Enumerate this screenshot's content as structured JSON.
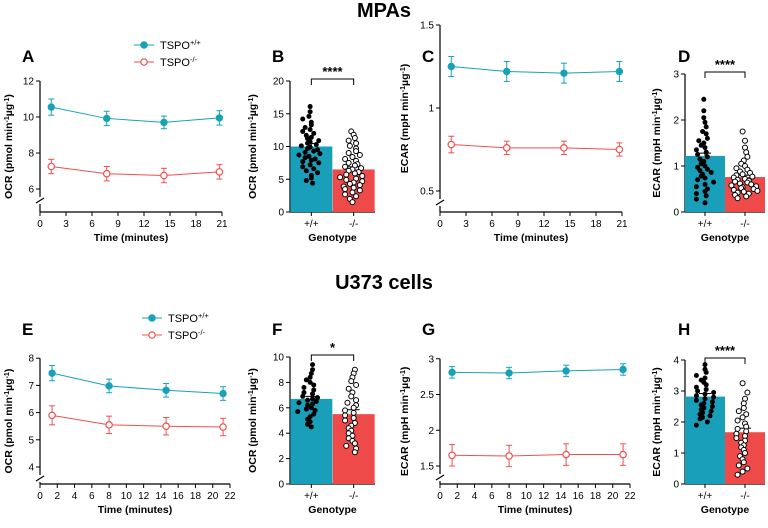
{
  "sections": [
    {
      "title": "MPAs"
    },
    {
      "title": "U373 cells"
    }
  ],
  "colors": {
    "wt": "#17a2b8",
    "ko": "#f0504e",
    "wt_bar": "#1a9fba",
    "ko_bar": "#ef4a4a"
  },
  "chart_data": [
    {
      "id": "A",
      "type": "line",
      "panel_label": "A",
      "xlabel": "Time (minutes)",
      "ylabel": "OCR (pmol min⁻¹µg⁻¹)",
      "xlim": [
        0,
        21
      ],
      "ylim": [
        5,
        12
      ],
      "axis_break": true,
      "xticks": [
        0,
        3,
        6,
        9,
        12,
        15,
        18,
        21
      ],
      "yticks": [
        6,
        8,
        10,
        12
      ],
      "legend": {
        "placement": "top-right",
        "entries": [
          "TSPO+/+",
          "TSPO-/-"
        ]
      },
      "series": [
        {
          "name": "TSPO+/+",
          "key": "wt",
          "x": [
            1.3,
            7.7,
            14.3,
            20.7
          ],
          "y": [
            10.55,
            9.92,
            9.7,
            9.95
          ],
          "err": [
            0.45,
            0.4,
            0.35,
            0.4
          ]
        },
        {
          "name": "TSPO-/-",
          "key": "ko",
          "x": [
            1.3,
            7.7,
            14.3,
            20.7
          ],
          "y": [
            7.25,
            6.85,
            6.75,
            6.95
          ],
          "err": [
            0.4,
            0.4,
            0.4,
            0.4
          ]
        }
      ]
    },
    {
      "id": "B",
      "type": "bar",
      "panel_label": "B",
      "xlabel": "Genotype",
      "ylabel": "OCR (pmol min⁻¹µg⁻¹)",
      "ylim": [
        0,
        20
      ],
      "yticks": [
        0,
        5,
        10,
        15,
        20
      ],
      "categories": [
        "+/+",
        "-/-"
      ],
      "values": [
        10.0,
        6.5
      ],
      "sem": [
        0.45,
        0.4
      ],
      "significance": "****",
      "points": [
        [
          16.1,
          15.3,
          14.6,
          14.2,
          13.7,
          13.3,
          12.9,
          12.6,
          12.3,
          12.0,
          11.7,
          11.4,
          11.2,
          10.9,
          10.7,
          10.5,
          10.3,
          10.1,
          9.9,
          9.7,
          9.5,
          9.3,
          9.1,
          8.9,
          8.7,
          8.5,
          8.3,
          8.1,
          7.9,
          7.7,
          7.5,
          7.2,
          6.9,
          6.6,
          6.3,
          6.0,
          5.6,
          5.2,
          4.8,
          4.4
        ],
        [
          12.3,
          11.8,
          11.3,
          10.9,
          10.5,
          10.1,
          9.7,
          9.3,
          9.0,
          8.7,
          8.4,
          8.1,
          7.8,
          7.5,
          7.3,
          7.1,
          6.9,
          6.7,
          6.5,
          6.3,
          6.1,
          5.9,
          5.7,
          5.5,
          5.3,
          5.1,
          4.9,
          4.7,
          4.5,
          4.3,
          4.1,
          3.9,
          3.7,
          3.5,
          3.3,
          3.0,
          2.7,
          2.4,
          2.0,
          1.5
        ]
      ]
    },
    {
      "id": "C",
      "type": "line",
      "panel_label": "C",
      "xlabel": "Time (minutes)",
      "ylabel": "ECAR (mpH min⁻¹µg⁻¹)",
      "xlim": [
        0,
        21
      ],
      "ylim": [
        0.45,
        1.5
      ],
      "axis_break": true,
      "xticks": [
        0,
        3,
        6,
        9,
        12,
        15,
        18,
        21
      ],
      "yticks": [
        0.5,
        1.0,
        1.5
      ],
      "series": [
        {
          "name": "TSPO+/+",
          "key": "wt",
          "x": [
            1.3,
            7.7,
            14.3,
            20.7
          ],
          "y": [
            1.25,
            1.22,
            1.21,
            1.22
          ],
          "err": [
            0.06,
            0.06,
            0.06,
            0.06
          ]
        },
        {
          "name": "TSPO-/-",
          "key": "ko",
          "x": [
            1.3,
            7.7,
            14.3,
            20.7
          ],
          "y": [
            0.78,
            0.76,
            0.76,
            0.75
          ],
          "err": [
            0.05,
            0.04,
            0.04,
            0.04
          ]
        }
      ]
    },
    {
      "id": "D",
      "type": "bar",
      "panel_label": "D",
      "xlabel": "Genotype",
      "ylabel": "ECAR (mpH min⁻¹µg⁻¹)",
      "ylim": [
        0,
        3
      ],
      "yticks": [
        0,
        1,
        2,
        3
      ],
      "categories": [
        "+/+",
        "-/-"
      ],
      "values": [
        1.22,
        0.76
      ],
      "sem": [
        0.06,
        0.04
      ],
      "significance": "****",
      "points": [
        [
          2.45,
          2.2,
          2.05,
          1.95,
          1.85,
          1.75,
          1.7,
          1.6,
          1.55,
          1.5,
          1.45,
          1.4,
          1.35,
          1.3,
          1.25,
          1.2,
          1.15,
          1.1,
          1.05,
          1.0,
          0.97,
          0.93,
          0.9,
          0.86,
          0.82,
          0.78,
          0.74,
          0.7,
          0.65,
          0.6,
          0.55,
          0.5,
          0.45,
          0.4,
          0.35,
          0.28,
          0.2
        ],
        [
          1.75,
          1.55,
          1.4,
          1.3,
          1.2,
          1.12,
          1.05,
          1.0,
          0.95,
          0.92,
          0.88,
          0.85,
          0.82,
          0.8,
          0.77,
          0.75,
          0.72,
          0.7,
          0.68,
          0.66,
          0.64,
          0.62,
          0.6,
          0.58,
          0.56,
          0.54,
          0.52,
          0.5,
          0.48,
          0.46,
          0.44,
          0.42,
          0.4,
          0.37,
          0.34,
          0.3
        ]
      ]
    },
    {
      "id": "E",
      "type": "line",
      "panel_label": "E",
      "xlabel": "Time (minutes)",
      "ylabel": "OCR (pmol min⁻¹µg⁻¹)",
      "xlim": [
        0,
        22
      ],
      "ylim": [
        3.5,
        8
      ],
      "axis_break": true,
      "xticks": [
        0,
        2,
        4,
        6,
        8,
        10,
        12,
        14,
        16,
        18,
        20,
        22
      ],
      "yticks": [
        4,
        5,
        6,
        7,
        8
      ],
      "legend": {
        "placement": "top-right",
        "entries": [
          "TSPO+/+",
          "TSPO-/-"
        ]
      },
      "series": [
        {
          "name": "TSPO+/+",
          "key": "wt",
          "x": [
            1.4,
            8.0,
            14.6,
            21.2
          ],
          "y": [
            7.45,
            6.98,
            6.82,
            6.7
          ],
          "err": [
            0.28,
            0.25,
            0.25,
            0.25
          ]
        },
        {
          "name": "TSPO-/-",
          "key": "ko",
          "x": [
            1.4,
            8.0,
            14.6,
            21.2
          ],
          "y": [
            5.9,
            5.55,
            5.5,
            5.47
          ],
          "err": [
            0.35,
            0.32,
            0.32,
            0.32
          ]
        }
      ]
    },
    {
      "id": "F",
      "type": "bar",
      "panel_label": "F",
      "xlabel": "Genotype",
      "ylabel": "OCR (pmol min⁻¹µg⁻¹)",
      "ylim": [
        0,
        10
      ],
      "yticks": [
        0,
        2,
        4,
        6,
        8,
        10
      ],
      "categories": [
        "+/+",
        "-/-"
      ],
      "values": [
        6.7,
        5.5
      ],
      "sem": [
        0.2,
        0.35
      ],
      "significance": "*",
      "points": [
        [
          9.4,
          9.0,
          8.7,
          8.4,
          8.2,
          8.0,
          7.8,
          7.6,
          7.4,
          7.2,
          7.1,
          6.9,
          6.8,
          6.7,
          6.6,
          6.5,
          6.4,
          6.3,
          6.2,
          6.0,
          5.9,
          5.8,
          5.7,
          5.5,
          5.3,
          5.1,
          4.9,
          4.7,
          4.5
        ],
        [
          9.0,
          8.7,
          8.4,
          8.1,
          7.8,
          7.5,
          7.2,
          6.9,
          6.6,
          6.4,
          6.2,
          6.0,
          5.8,
          5.6,
          5.4,
          5.2,
          5.0,
          4.8,
          4.6,
          4.4,
          4.2,
          4.0,
          3.8,
          3.6,
          3.4,
          3.2,
          3.0,
          2.8,
          2.5
        ]
      ]
    },
    {
      "id": "G",
      "type": "line",
      "panel_label": "G",
      "xlabel": "Time (minutes)",
      "ylabel": "ECAR (mpH min⁻¹µg⁻¹)",
      "xlim": [
        0,
        22
      ],
      "ylim": [
        1.4,
        3.0
      ],
      "axis_break": true,
      "xticks": [
        0,
        2,
        4,
        6,
        8,
        10,
        12,
        14,
        16,
        18,
        20,
        22
      ],
      "yticks": [
        1.5,
        2.0,
        2.5,
        3.0
      ],
      "series": [
        {
          "name": "TSPO+/+",
          "key": "wt",
          "x": [
            1.4,
            8.0,
            14.6,
            21.2
          ],
          "y": [
            2.81,
            2.8,
            2.83,
            2.85
          ],
          "err": [
            0.08,
            0.08,
            0.08,
            0.08
          ]
        },
        {
          "name": "TSPO-/-",
          "key": "ko",
          "x": [
            1.4,
            8.0,
            14.6,
            21.2
          ],
          "y": [
            1.65,
            1.64,
            1.66,
            1.66
          ],
          "err": [
            0.15,
            0.15,
            0.15,
            0.15
          ]
        }
      ]
    },
    {
      "id": "H",
      "type": "bar",
      "panel_label": "H",
      "xlabel": "Genotype",
      "ylabel": "ECAR (mpH min⁻¹µg⁻¹)",
      "ylim": [
        0,
        4
      ],
      "yticks": [
        0,
        1,
        2,
        3,
        4
      ],
      "categories": [
        "+/+",
        "-/-"
      ],
      "values": [
        2.82,
        1.67
      ],
      "sem": [
        0.1,
        0.13
      ],
      "significance": "****",
      "points": [
        [
          3.85,
          3.7,
          3.6,
          3.5,
          3.42,
          3.35,
          3.28,
          3.2,
          3.12,
          3.05,
          3.0,
          2.95,
          2.9,
          2.85,
          2.8,
          2.75,
          2.7,
          2.65,
          2.6,
          2.55,
          2.5,
          2.45,
          2.4,
          2.35,
          2.3,
          2.25,
          2.2,
          2.15,
          2.1,
          2.0,
          1.9
        ],
        [
          3.25,
          2.95,
          2.75,
          2.6,
          2.45,
          2.35,
          2.25,
          2.15,
          2.05,
          1.95,
          1.85,
          1.78,
          1.7,
          1.62,
          1.55,
          1.48,
          1.4,
          1.33,
          1.25,
          1.18,
          1.1,
          1.0,
          0.9,
          0.8,
          0.7,
          0.6,
          0.5,
          0.4,
          0.3
        ]
      ]
    }
  ]
}
